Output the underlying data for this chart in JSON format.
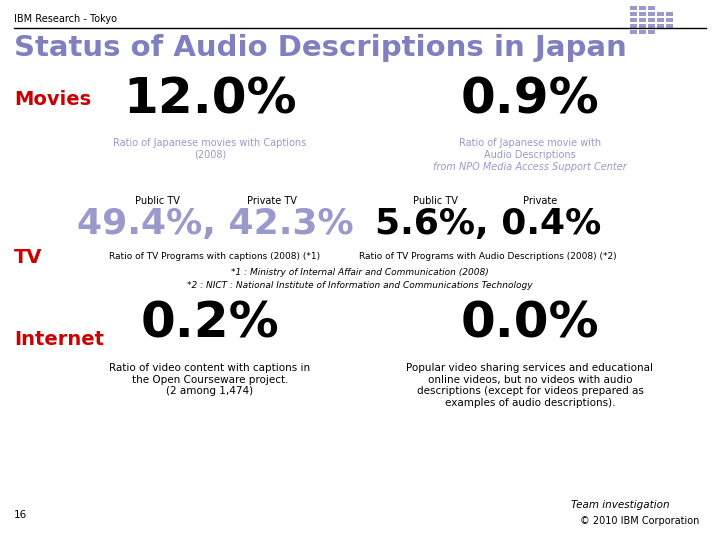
{
  "header_label": "IBM Research - Tokyo",
  "title": "Status of Audio Descriptions in Japan",
  "title_color": "#8080c0",
  "red_label_color": "#cc0000",
  "movies_pct1": "12.0%",
  "movies_pct2": "0.9%",
  "movies_sub1": "Ratio of Japanese movies with Captions\n(2008)",
  "movies_sub2": "Ratio of Japanese movie with\nAudio Descriptions",
  "movies_source": "from NPO Media Access Support Center",
  "tv_sub1": "Ratio of TV Programs with captions (2008) (*1)",
  "tv_sub2": "Ratio of TV Programs with Audio Descriptions (2008) (*2)",
  "tv_note1": "*1 : Ministry of Internal Affair and Communication (2008)",
  "tv_note2": "*2 : NICT : National Institute of Information and Communications Technology",
  "internet_pct1": "0.2%",
  "internet_pct2": "0.0%",
  "internet_sub1": "Ratio of video content with captions in\nthe Open Courseware project.\n(2 among 1,474)",
  "internet_sub2": "Popular video sharing services and educational\nonline videos, but no videos with audio\ndescriptions (except for videos prepared as\nexamples of audio descriptions).",
  "team_label": "Team investigation",
  "copyright": "© 2010 IBM Corporation",
  "page_num": "16",
  "bg_color": "#ffffff",
  "black": "#000000",
  "light_blue": "#9999cc",
  "tv_pct_color": "#9999cc",
  "divider_color": "#000000"
}
